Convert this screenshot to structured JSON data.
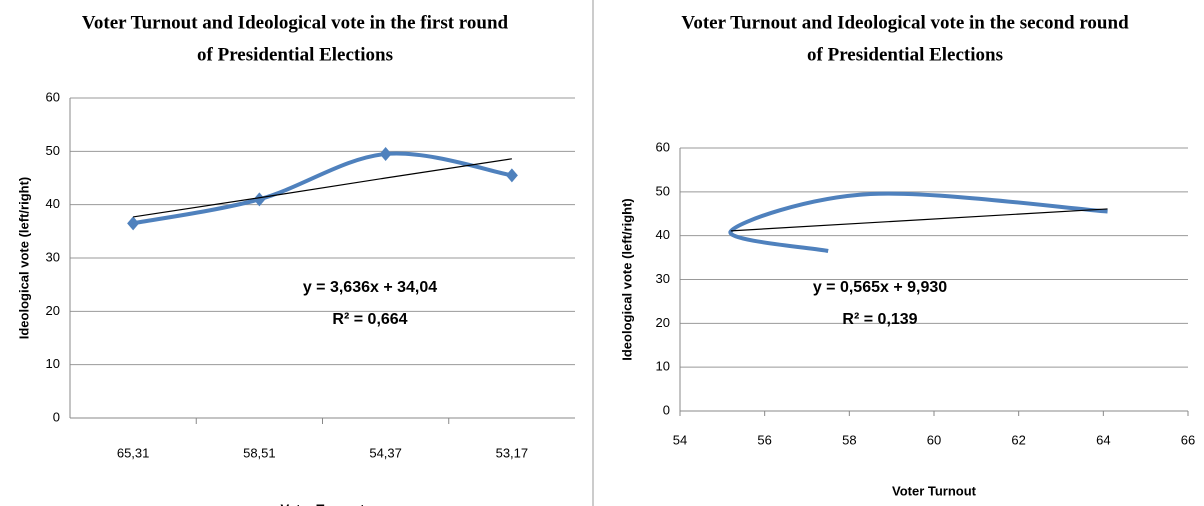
{
  "chart_data": [
    {
      "type": "line",
      "title": "Voter Turnout and Ideological vote in the first round",
      "subtitle": "of Presidential Elections",
      "xlabel": "Voter Turnout",
      "ylabel": "Ideological vote (left/right)",
      "categories": [
        "65,31",
        "58,51",
        "54,37",
        "53,17"
      ],
      "series": [
        {
          "color": "#4f81bd",
          "values": [
            36.5,
            41,
            49.5,
            45.5
          ],
          "smooth": true,
          "markers": "diamond"
        },
        {
          "color": "#000000",
          "values": [
            37.7,
            41.3,
            45,
            48.6
          ],
          "trendline": true
        }
      ],
      "annotations": [
        "y = 3,636x + 34,04",
        "R² = 0,664"
      ],
      "ylim": [
        0,
        60
      ],
      "yticks": [
        0,
        10,
        20,
        30,
        40,
        50,
        60
      ],
      "grid": true
    },
    {
      "type": "scatter",
      "title": "Voter Turnout and Ideological vote in the second round",
      "subtitle": "of Presidential Elections",
      "xlabel": "Voter Turnout",
      "ylabel": "Ideological vote (left/right)",
      "series": [
        {
          "color": "#4f81bd",
          "x": [
            57.5,
            55.2,
            58.5,
            64.1
          ],
          "values": [
            36.5,
            41,
            49.5,
            45.5
          ],
          "smooth": true
        },
        {
          "color": "#000000",
          "x": [
            55.2,
            64.1
          ],
          "values": [
            41.1,
            46.1
          ],
          "trendline": true
        }
      ],
      "annotations": [
        "y = 0,565x + 9,930",
        "R² = 0,139"
      ],
      "xlim": [
        54,
        66
      ],
      "xticks": [
        54,
        56,
        58,
        60,
        62,
        64,
        66
      ],
      "ylim": [
        0,
        60
      ],
      "yticks": [
        0,
        10,
        20,
        30,
        40,
        50,
        60
      ],
      "grid": true
    }
  ]
}
